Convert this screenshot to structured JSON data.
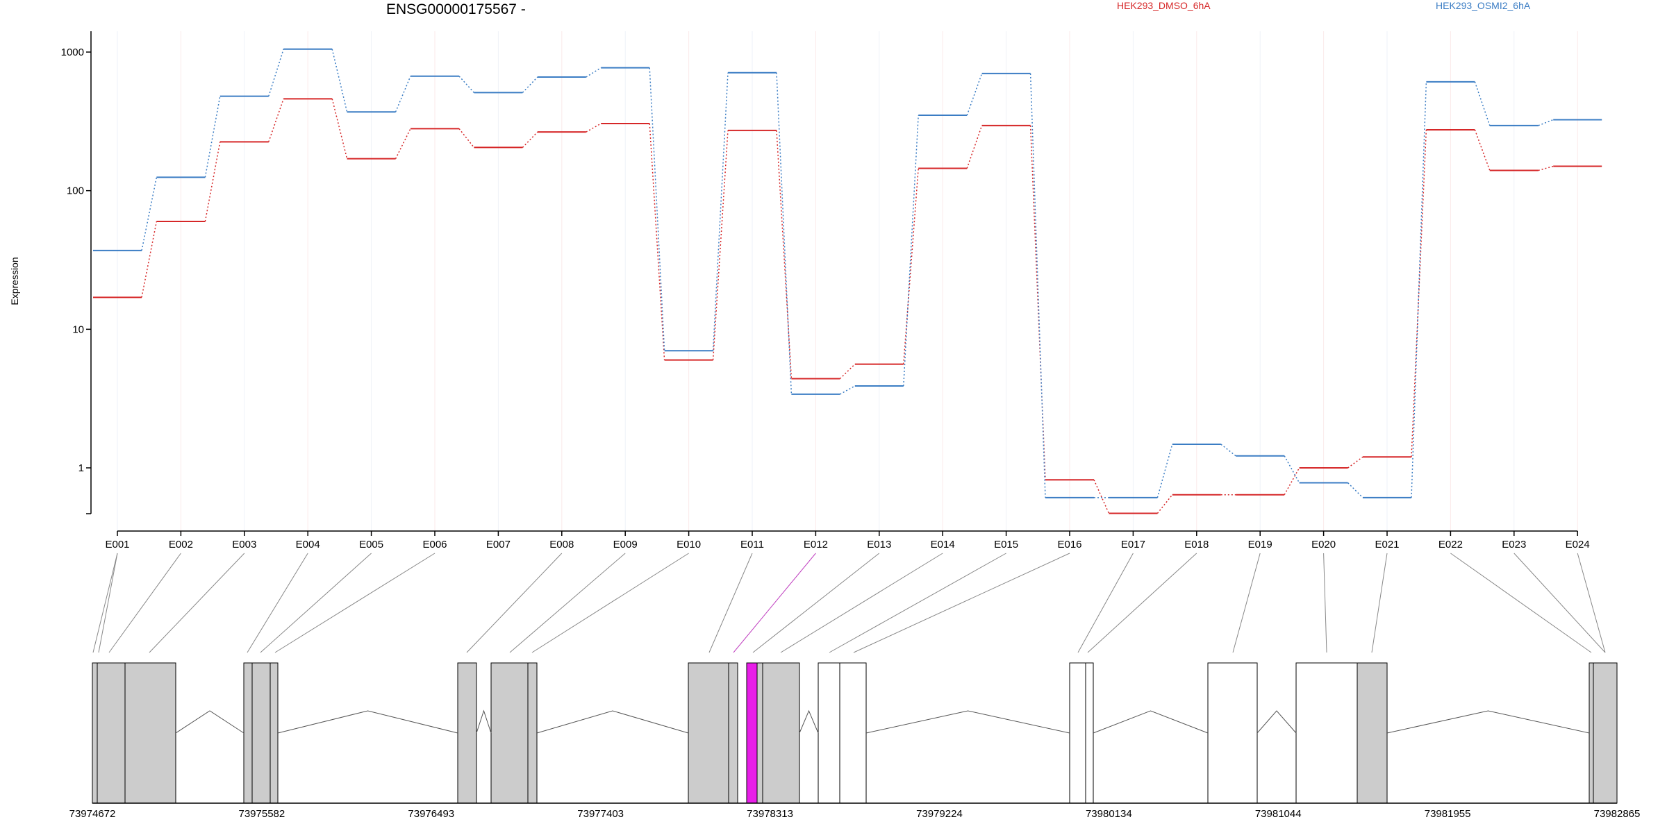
{
  "chart_data": {
    "type": "line",
    "title": "ENSG00000175567 -",
    "ylabel": "Expression",
    "yscale": "log",
    "ylim": [
      0.4,
      1500
    ],
    "yticks": [
      1,
      10,
      100,
      1000
    ],
    "ytick_labels": [
      "1",
      "10",
      "100",
      "1000"
    ],
    "categories": [
      "E001",
      "E002",
      "E003",
      "E004",
      "E005",
      "E006",
      "E007",
      "E008",
      "E009",
      "E010",
      "E011",
      "E012",
      "E013",
      "E014",
      "E015",
      "E016",
      "E017",
      "E018",
      "E019",
      "E020",
      "E021",
      "E022",
      "E023",
      "E024"
    ],
    "series": [
      {
        "name": "HEK293_DMSO_6hA",
        "color": "#d62728",
        "values": [
          17,
          60,
          225,
          460,
          170,
          280,
          205,
          265,
          305,
          6.0,
          272,
          4.4,
          5.6,
          145,
          295,
          0.82,
          0.47,
          0.64,
          0.64,
          1.0,
          1.2,
          275,
          140,
          150
        ]
      },
      {
        "name": "HEK293_OSMI2_6hA",
        "color": "#3b7dc4",
        "values": [
          37,
          125,
          480,
          1050,
          370,
          670,
          510,
          660,
          770,
          7.0,
          710,
          3.4,
          3.9,
          350,
          700,
          0.61,
          0.61,
          1.48,
          1.22,
          0.78,
          0.61,
          610,
          295,
          325
        ]
      }
    ],
    "highlight_exon": "E012",
    "gene_axis": {
      "start": 73974672,
      "end": 73982865,
      "tick_labels": [
        "73974672",
        "73975582",
        "73976493",
        "73977403",
        "73978313",
        "73979224",
        "73980134",
        "73981044",
        "73981955",
        "73982865"
      ]
    }
  }
}
